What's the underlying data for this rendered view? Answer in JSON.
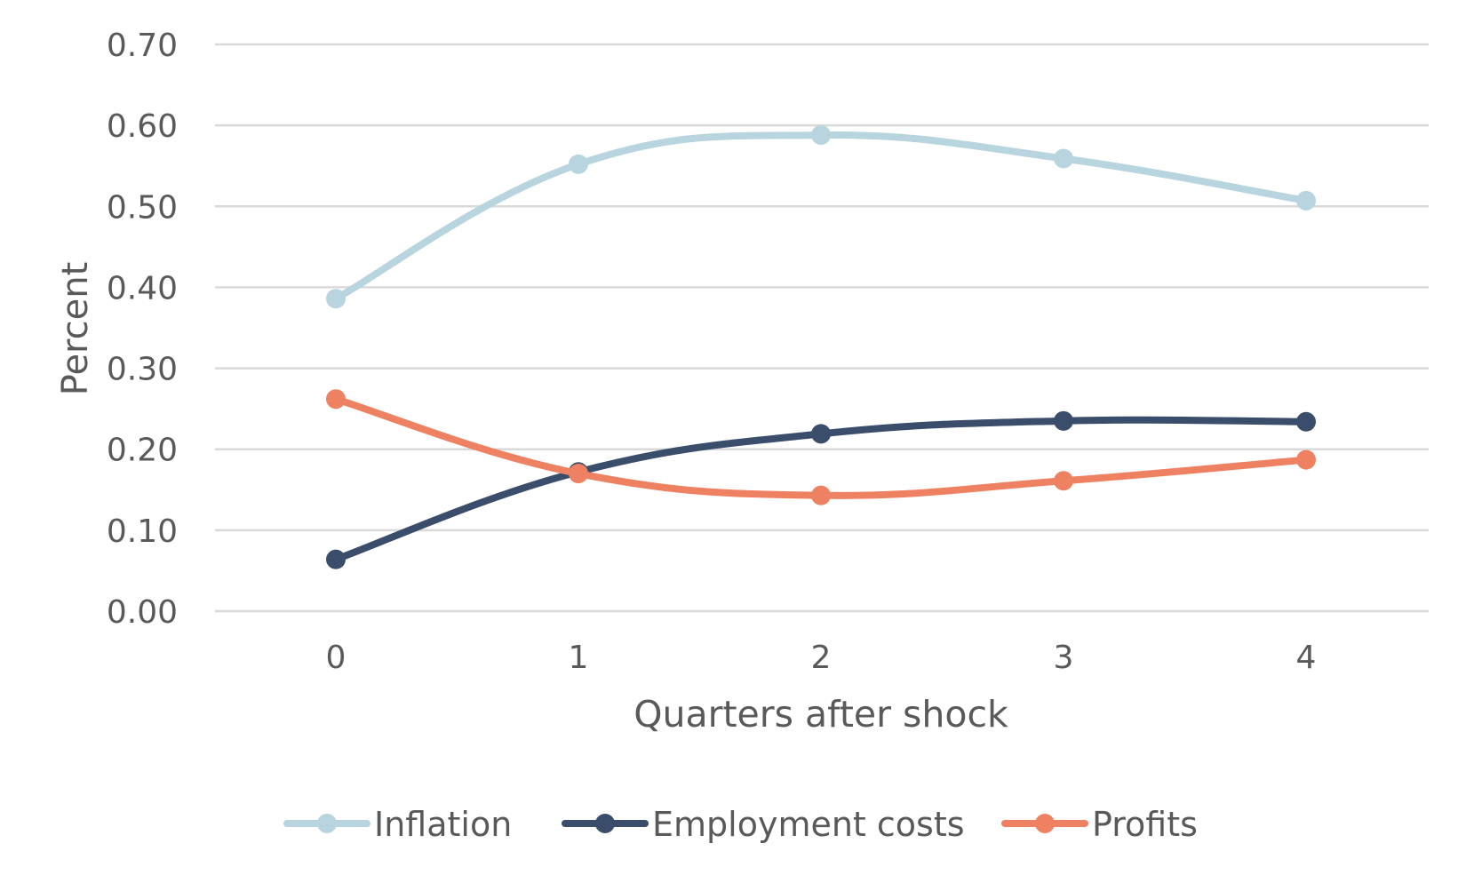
{
  "chart_data": {
    "type": "line",
    "title": "",
    "xlabel": "Quarters after shock",
    "ylabel": "Percent",
    "x": [
      0,
      1,
      2,
      3,
      4
    ],
    "x_tick_labels": [
      "0",
      "1",
      "2",
      "3",
      "4"
    ],
    "y_tick_labels": [
      "0.00",
      "0.10",
      "0.20",
      "0.30",
      "0.40",
      "0.50",
      "0.60",
      "0.70"
    ],
    "ylim": [
      0,
      0.7
    ],
    "grid": true,
    "legend_position": "bottom",
    "series": [
      {
        "name": "Inflation",
        "color": "#b8d4de",
        "values": [
          0.386,
          0.552,
          0.588,
          0.559,
          0.507
        ]
      },
      {
        "name": "Employment costs",
        "color": "#3a4d6b",
        "values": [
          0.064,
          0.172,
          0.219,
          0.235,
          0.234
        ]
      },
      {
        "name": "Profits",
        "color": "#ef8163",
        "values": [
          0.262,
          0.17,
          0.143,
          0.161,
          0.187
        ]
      }
    ]
  }
}
